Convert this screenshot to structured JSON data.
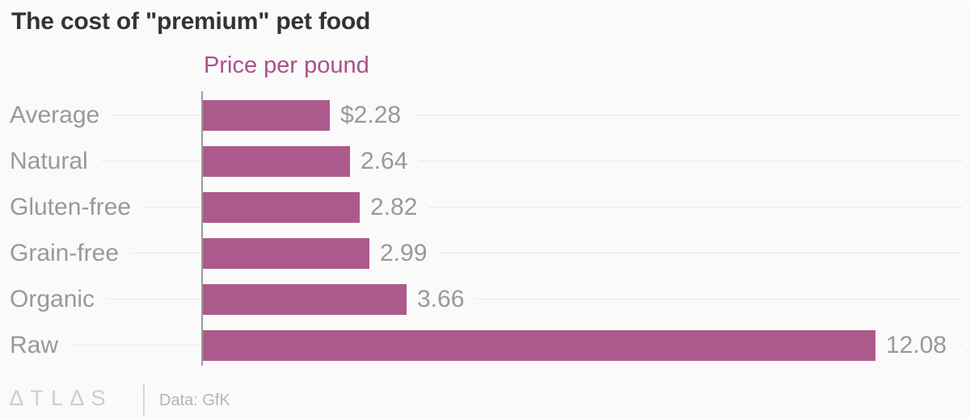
{
  "title": "The cost of \"premium\" pet food",
  "legend": {
    "label": "Price per pound",
    "color": "#a9518a"
  },
  "colors": {
    "background": "#fafafa",
    "bar": "#ac5a8c",
    "title": "#333333",
    "label": "#999999",
    "grid": "#e9e9e9",
    "axis": "#9b9b9b",
    "logo": "#cdcdcd"
  },
  "footer": {
    "logo_text": "ATLAS",
    "logo_glyphs": "∆TL∆S",
    "source": "Data: GfK"
  },
  "chart_data": {
    "type": "bar",
    "orientation": "horizontal",
    "title": "The cost of \"premium\" pet food",
    "series_label": "Price per pound",
    "categories": [
      "Average",
      "Natural",
      "Gluten-free",
      "Grain-free",
      "Organic",
      "Raw"
    ],
    "values": [
      2.28,
      2.64,
      2.82,
      2.99,
      3.66,
      12.08
    ],
    "value_labels": [
      "$2.28",
      "2.64",
      "2.82",
      "2.99",
      "3.66",
      "12.08"
    ],
    "xlim": [
      0,
      13.66
    ],
    "grid": true,
    "legend_position": "top",
    "source": "Data: GfK"
  }
}
